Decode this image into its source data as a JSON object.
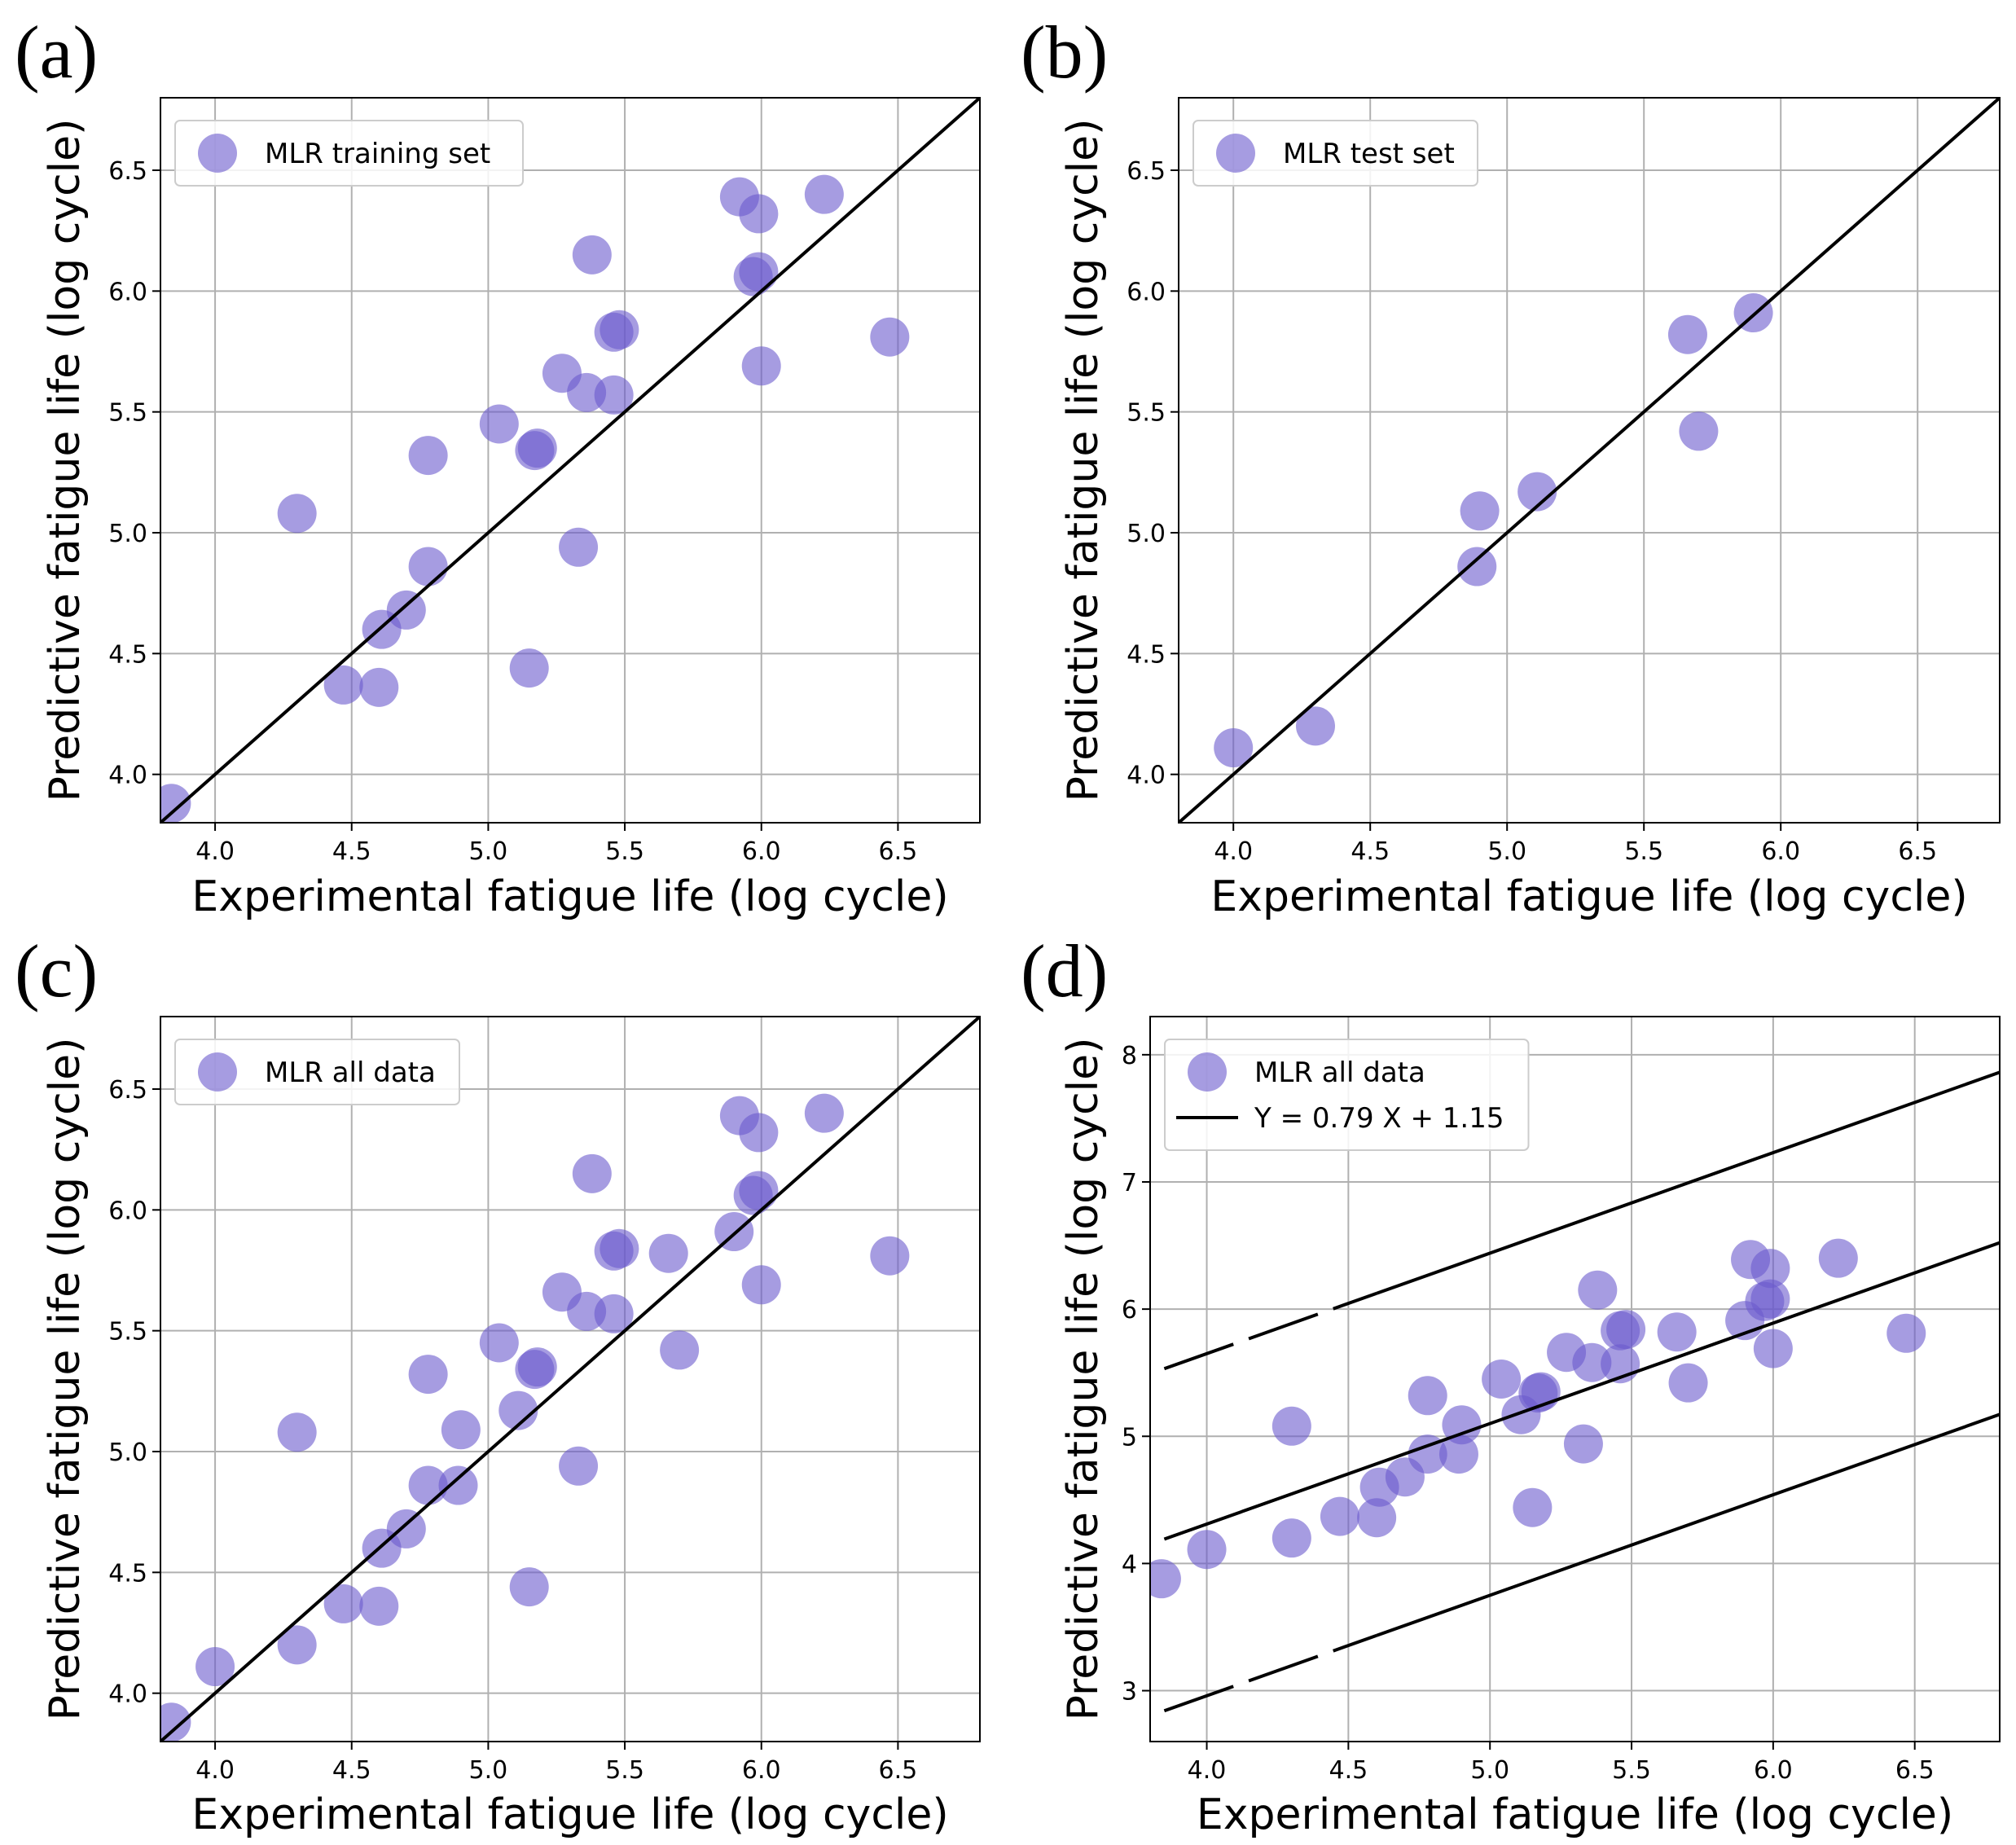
{
  "colors": {
    "marker": "#6a5acd",
    "line": "#000000",
    "grid": "#b0b0b0"
  },
  "chart_data": [
    {
      "type": "scatter",
      "panel_label": "(a)",
      "xlabel": "Experimental fatigue life (log cycle)",
      "ylabel": "Predictive fatigue life (log cycle)",
      "xlim": [
        3.8,
        6.8
      ],
      "ylim": [
        3.8,
        6.8
      ],
      "xticks": [
        4.0,
        4.5,
        5.0,
        5.5,
        6.0,
        6.5
      ],
      "yticks": [
        4.0,
        4.5,
        5.0,
        5.5,
        6.0,
        6.5
      ],
      "xtick_labels": [
        "4.0",
        "4.5",
        "5.0",
        "5.5",
        "6.0",
        "6.5"
      ],
      "ytick_labels": [
        "4.0",
        "4.5",
        "5.0",
        "5.5",
        "6.0",
        "6.5"
      ],
      "grid": true,
      "legend": {
        "position": "top-left",
        "entries": [
          {
            "kind": "marker",
            "label": "MLR training set"
          }
        ]
      },
      "reference_line": {
        "label": "y = x",
        "slope": 1,
        "intercept": 0
      },
      "series": [
        {
          "name": "MLR training set",
          "x": [
            3.84,
            4.3,
            4.47,
            4.6,
            4.61,
            4.7,
            4.78,
            4.78,
            5.04,
            5.15,
            5.17,
            5.18,
            5.27,
            5.33,
            5.36,
            5.38,
            5.46,
            5.46,
            5.48,
            5.92,
            5.97,
            5.99,
            5.99,
            6.0,
            6.23,
            6.47
          ],
          "y": [
            3.88,
            5.08,
            4.37,
            4.36,
            4.6,
            4.68,
            4.86,
            5.32,
            5.45,
            4.44,
            5.34,
            5.35,
            5.66,
            4.94,
            5.58,
            6.15,
            5.57,
            5.83,
            5.84,
            6.39,
            6.06,
            6.32,
            6.08,
            5.69,
            6.4,
            5.81
          ]
        }
      ]
    },
    {
      "type": "scatter",
      "panel_label": "(b)",
      "xlabel": "Experimental fatigue life (log cycle)",
      "ylabel": "Predictive fatigue life (log cycle)",
      "xlim": [
        3.8,
        6.8
      ],
      "ylim": [
        3.8,
        6.8
      ],
      "xticks": [
        4.0,
        4.5,
        5.0,
        5.5,
        6.0,
        6.5
      ],
      "yticks": [
        4.0,
        4.5,
        5.0,
        5.5,
        6.0,
        6.5
      ],
      "xtick_labels": [
        "4.0",
        "4.5",
        "5.0",
        "5.5",
        "6.0",
        "6.5"
      ],
      "ytick_labels": [
        "4.0",
        "4.5",
        "5.0",
        "5.5",
        "6.0",
        "6.5"
      ],
      "grid": true,
      "legend": {
        "position": "top-left",
        "entries": [
          {
            "kind": "marker",
            "label": "MLR test set"
          }
        ]
      },
      "reference_line": {
        "label": "y = x",
        "slope": 1,
        "intercept": 0
      },
      "series": [
        {
          "name": "MLR test set",
          "x": [
            4.0,
            4.3,
            4.89,
            4.9,
            5.11,
            5.66,
            5.7,
            5.9
          ],
          "y": [
            4.11,
            4.2,
            4.86,
            5.09,
            5.17,
            5.82,
            5.42,
            5.91
          ]
        }
      ]
    },
    {
      "type": "scatter",
      "panel_label": "(c)",
      "xlabel": "Experimental fatigue life (log cycle)",
      "ylabel": "Predictive fatigue life (log cycle)",
      "xlim": [
        3.8,
        6.8
      ],
      "ylim": [
        3.8,
        6.8
      ],
      "xticks": [
        4.0,
        4.5,
        5.0,
        5.5,
        6.0,
        6.5
      ],
      "yticks": [
        4.0,
        4.5,
        5.0,
        5.5,
        6.0,
        6.5
      ],
      "xtick_labels": [
        "4.0",
        "4.5",
        "5.0",
        "5.5",
        "6.0",
        "6.5"
      ],
      "ytick_labels": [
        "4.0",
        "4.5",
        "5.0",
        "5.5",
        "6.0",
        "6.5"
      ],
      "grid": true,
      "legend": {
        "position": "top-left",
        "entries": [
          {
            "kind": "marker",
            "label": "MLR all data"
          }
        ]
      },
      "reference_line": {
        "label": "y = x",
        "slope": 1,
        "intercept": 0
      },
      "series": [
        {
          "name": "MLR all data",
          "x": [
            3.84,
            4.0,
            4.3,
            4.3,
            4.47,
            4.6,
            4.61,
            4.7,
            4.78,
            4.78,
            4.89,
            4.9,
            5.04,
            5.11,
            5.15,
            5.17,
            5.18,
            5.27,
            5.33,
            5.36,
            5.38,
            5.46,
            5.46,
            5.48,
            5.66,
            5.7,
            5.9,
            5.92,
            5.97,
            5.99,
            5.99,
            6.0,
            6.23,
            6.47
          ],
          "y": [
            3.88,
            4.11,
            4.2,
            5.08,
            4.37,
            4.36,
            4.6,
            4.68,
            4.86,
            5.32,
            4.86,
            5.09,
            5.45,
            5.17,
            4.44,
            5.34,
            5.35,
            5.66,
            4.94,
            5.58,
            6.15,
            5.57,
            5.83,
            5.84,
            5.82,
            5.42,
            5.91,
            6.39,
            6.06,
            6.32,
            6.08,
            5.69,
            6.4,
            5.81
          ]
        }
      ]
    },
    {
      "type": "scatter",
      "panel_label": "(d)",
      "xlabel": "Experimental fatigue life (log cycle)",
      "ylabel": "Predictive fatigue life (log cycle)",
      "xlim": [
        3.8,
        6.8
      ],
      "ylim": [
        2.6,
        8.3
      ],
      "xticks": [
        4.0,
        4.5,
        5.0,
        5.5,
        6.0,
        6.5
      ],
      "yticks": [
        3,
        4,
        5,
        6,
        7,
        8
      ],
      "xtick_labels": [
        "4.0",
        "4.5",
        "5.0",
        "5.5",
        "6.0",
        "6.5"
      ],
      "ytick_labels": [
        "3",
        "4",
        "5",
        "6",
        "7",
        "8"
      ],
      "grid": true,
      "legend": {
        "position": "top-left",
        "entries": [
          {
            "kind": "marker",
            "label": "MLR all data"
          },
          {
            "kind": "line",
            "label": "Y = 0.79 X + 1.15"
          }
        ]
      },
      "fit_line": {
        "slope": 0.79,
        "intercept": 1.15,
        "x_range": [
          3.85,
          6.8
        ]
      },
      "bounds": [
        {
          "name": "upper",
          "slope": 0.79,
          "intercept": 2.49,
          "x_range": [
            3.85,
            6.8
          ],
          "dashed_until": 4.6
        },
        {
          "name": "lower",
          "slope": 0.79,
          "intercept": -0.2,
          "x_range": [
            3.85,
            6.8
          ],
          "dashed_until": 4.6
        }
      ],
      "series": [
        {
          "name": "MLR all data",
          "x": [
            3.84,
            4.0,
            4.3,
            4.3,
            4.47,
            4.6,
            4.61,
            4.7,
            4.78,
            4.78,
            4.89,
            4.9,
            5.04,
            5.11,
            5.15,
            5.17,
            5.18,
            5.27,
            5.33,
            5.36,
            5.38,
            5.46,
            5.46,
            5.48,
            5.66,
            5.7,
            5.9,
            5.92,
            5.97,
            5.99,
            5.99,
            6.0,
            6.23,
            6.47
          ],
          "y": [
            3.88,
            4.11,
            4.2,
            5.08,
            4.37,
            4.36,
            4.6,
            4.68,
            4.86,
            5.32,
            4.86,
            5.09,
            5.45,
            5.17,
            4.44,
            5.34,
            5.35,
            5.66,
            4.94,
            5.58,
            6.15,
            5.57,
            5.83,
            5.84,
            5.82,
            5.42,
            5.91,
            6.39,
            6.06,
            6.32,
            6.08,
            5.69,
            6.4,
            5.81
          ]
        }
      ]
    }
  ]
}
